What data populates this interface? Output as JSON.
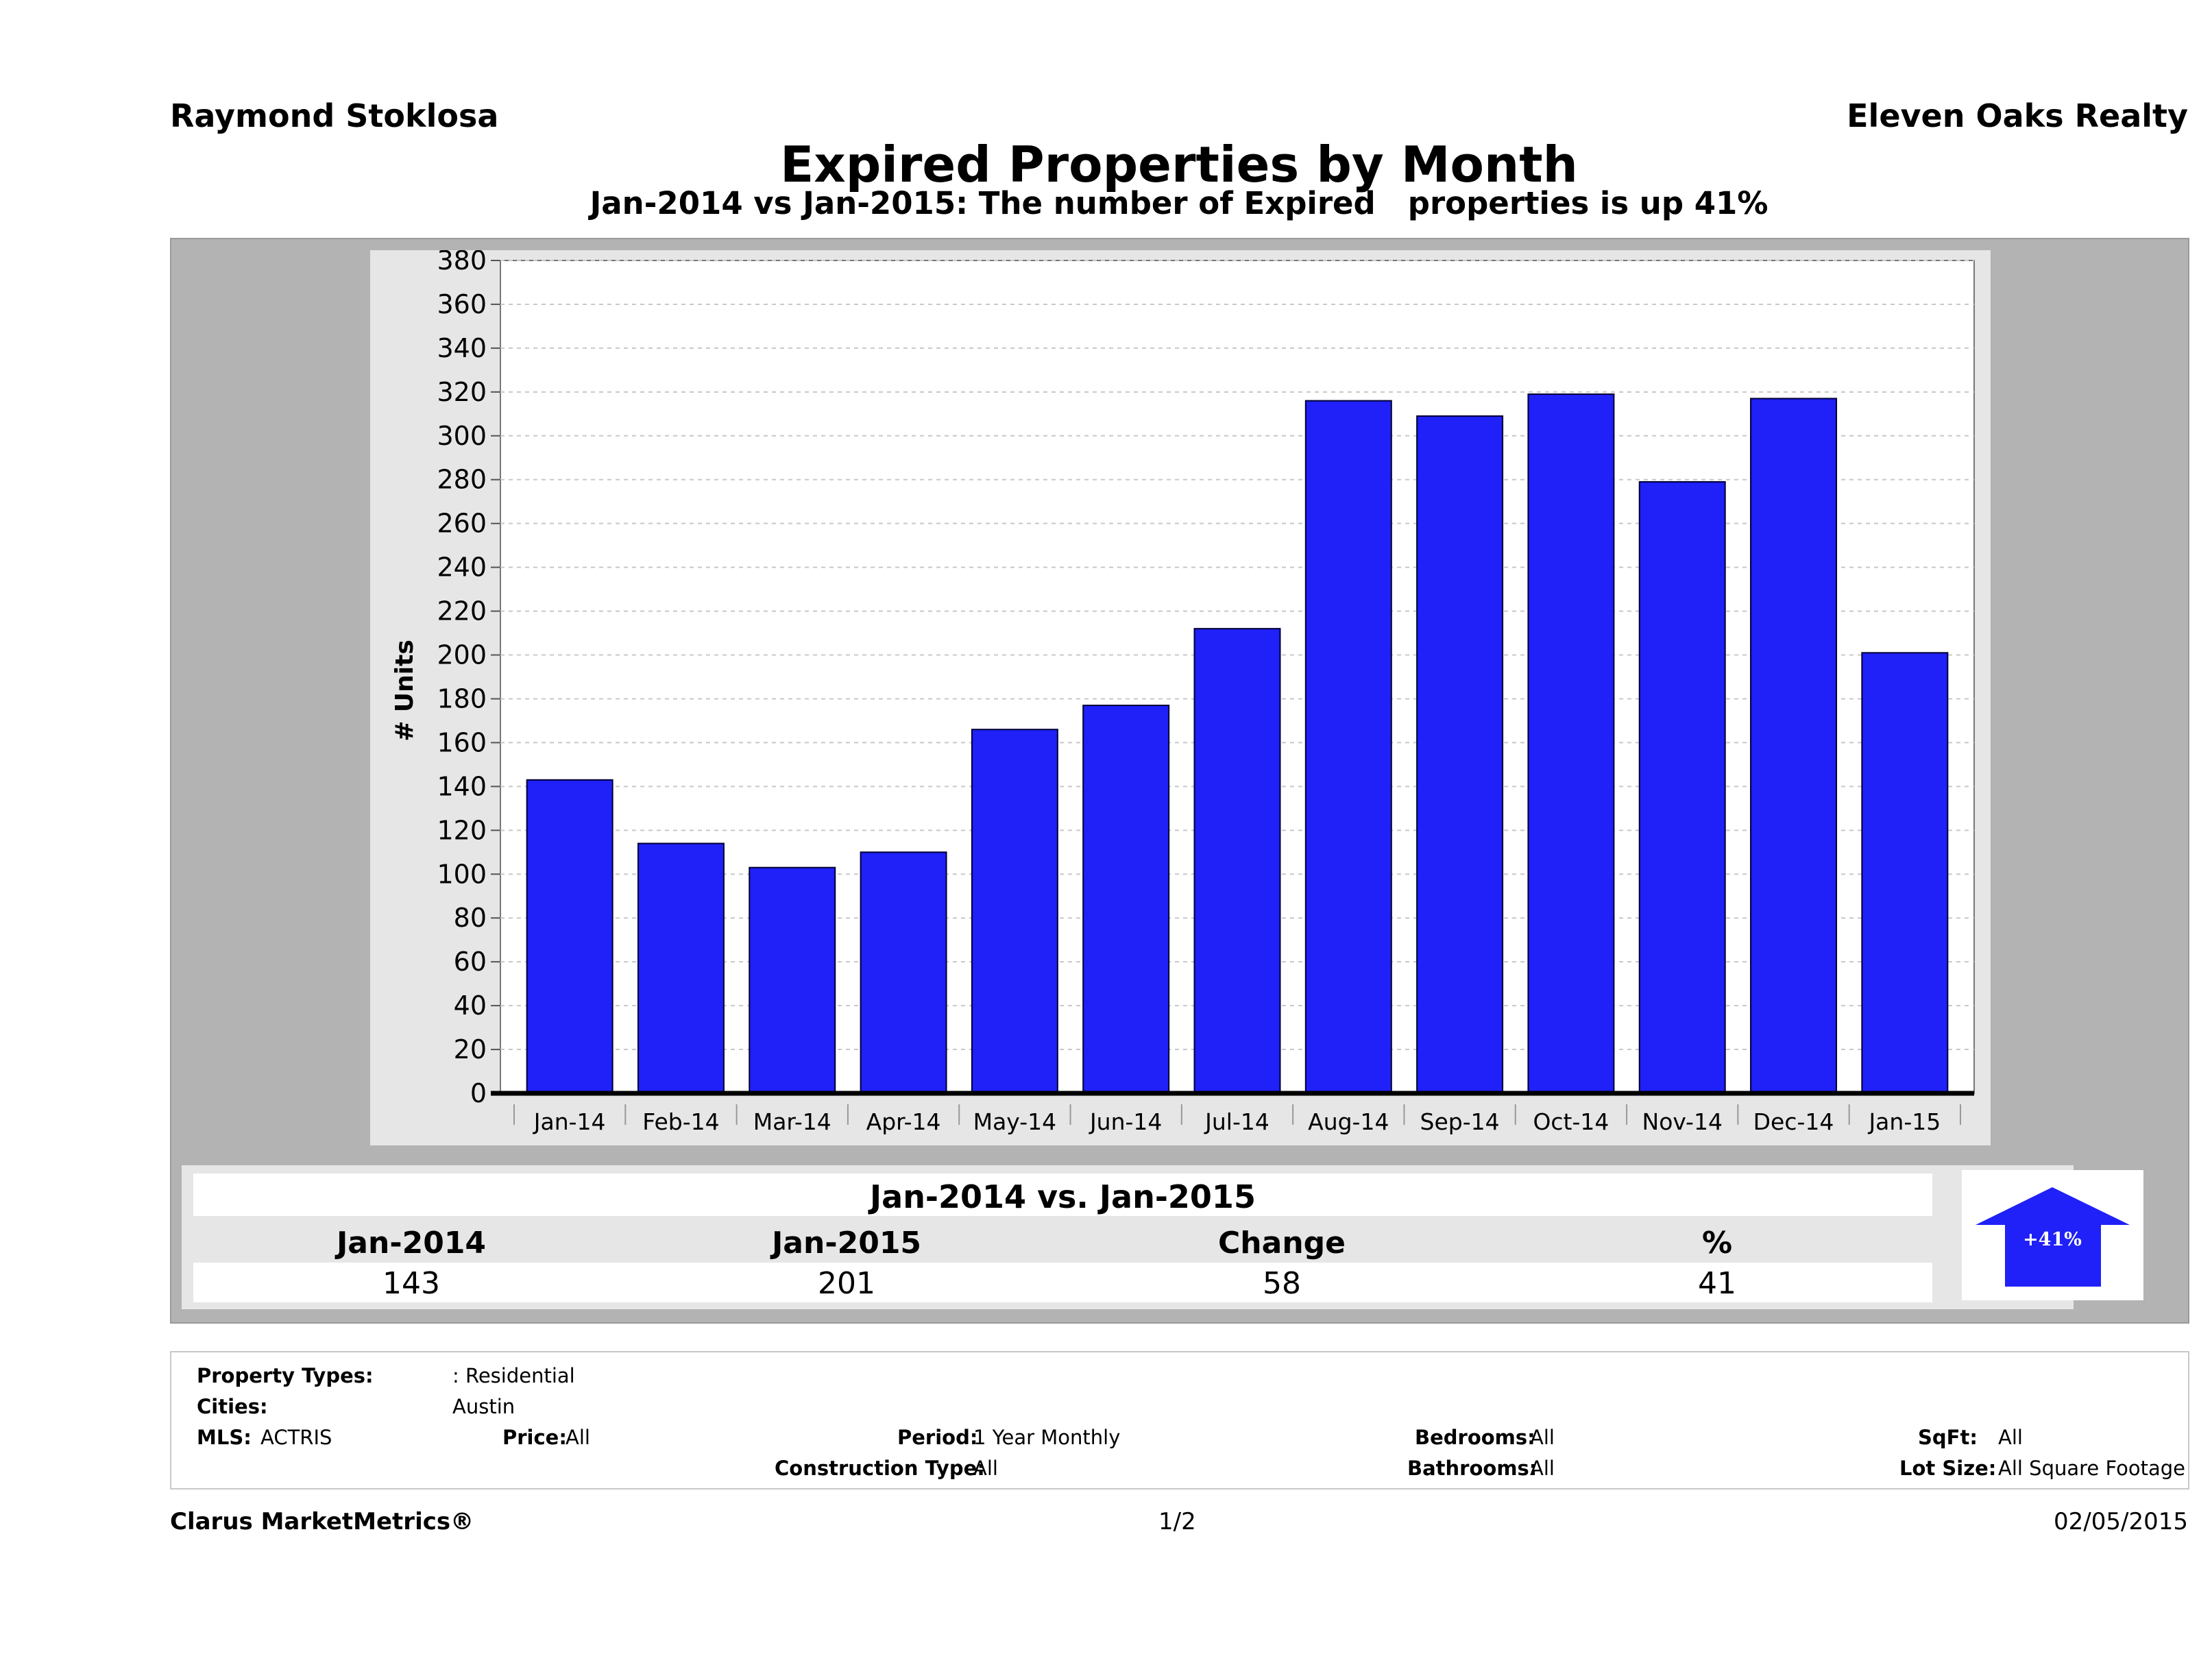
{
  "header": {
    "agent": "Raymond Stoklosa",
    "brokerage": "Eleven Oaks Realty",
    "title": "Expired Properties by Month",
    "subtitle": "Jan-2014 vs Jan-2015: The number of Expired   properties is up 41%"
  },
  "chart_data": {
    "type": "bar",
    "categories": [
      "Jan-14",
      "Feb-14",
      "Mar-14",
      "Apr-14",
      "May-14",
      "Jun-14",
      "Jul-14",
      "Aug-14",
      "Sep-14",
      "Oct-14",
      "Nov-14",
      "Dec-14",
      "Jan-15"
    ],
    "values": [
      143,
      114,
      103,
      110,
      166,
      177,
      212,
      316,
      309,
      319,
      279,
      317,
      201
    ],
    "ylabel": "# Units",
    "ylim": [
      0,
      380
    ],
    "yticks": [
      0,
      20,
      40,
      60,
      80,
      100,
      120,
      140,
      160,
      180,
      200,
      220,
      240,
      260,
      280,
      300,
      320,
      340,
      360,
      380
    ],
    "grid": true,
    "bar_color": "#2020f8"
  },
  "summary": {
    "title": "Jan-2014 vs. Jan-2015",
    "headers": [
      "Jan-2014",
      "Jan-2015",
      "Change",
      "%"
    ],
    "values": [
      "143",
      "201",
      "58",
      "41"
    ],
    "badge": "+41%",
    "badge_color": "#2020f8"
  },
  "filters": {
    "property_types_label": "Property Types:",
    "property_types_value": ": Residential",
    "cities_label": "Cities:",
    "cities_value": "Austin",
    "mls_label": "MLS:",
    "mls_value": "ACTRIS",
    "price_label": "Price:",
    "price_value": "All",
    "period_label": "Period:",
    "period_value": "1 Year Monthly",
    "construction_label": "Construction Type:",
    "construction_value": "All",
    "bedrooms_label": "Bedrooms:",
    "bedrooms_value": "All",
    "bathrooms_label": "Bathrooms:",
    "bathrooms_value": "All",
    "sqft_label": "SqFt:",
    "sqft_value": "All",
    "lotsize_label": "Lot Size:",
    "lotsize_value": "All Square Footage"
  },
  "footer": {
    "brand": "Clarus MarketMetrics®",
    "page": "1/2",
    "date": "02/05/2015"
  }
}
